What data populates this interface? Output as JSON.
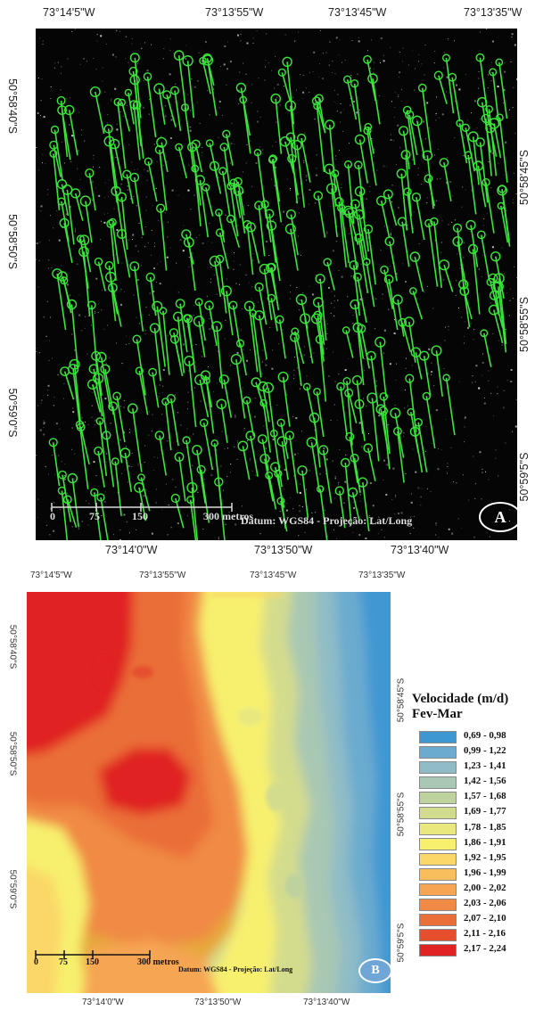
{
  "panel_a": {
    "top_labels": [
      "73°14'5\"W",
      "73°13'55\"W",
      "73°13'45\"W",
      "73°13'35\"W"
    ],
    "bottom_labels": [
      "73°14'0\"W",
      "73°13'50\"W",
      "73°13'40\"W"
    ],
    "left_labels": [
      "50°58'40\"S",
      "50°58'50\"S",
      "50°59'0\"S"
    ],
    "right_labels": [
      "50°58'45\"S",
      "50°58'55\"S",
      "50°59'5\"S"
    ],
    "scale": [
      "0",
      "75",
      "150",
      "300 metros"
    ],
    "datum": "Datum: WGS84 - Projeção: Lat/Long",
    "badge": "A",
    "vector_color": "#39e639"
  },
  "panel_b": {
    "top_labels": [
      "73°14'5\"W",
      "73°13'55\"W",
      "73°13'45\"W",
      "73°13'35\"W"
    ],
    "bottom_labels": [
      "73°14'0\"W",
      "73°13'50\"W",
      "73°13'40\"W"
    ],
    "left_labels": [
      "50°58'40\"S",
      "50°58'50\"S",
      "50°59'0\"S"
    ],
    "right_labels": [
      "50°58'45\"S",
      "50°58'55\"S",
      "50°59'5\"S"
    ],
    "scale": [
      "0",
      "75",
      "150",
      "300 metros"
    ],
    "datum": "Datum: WGS84 - Projeção: Lat/Long",
    "badge": "B"
  },
  "legend": {
    "title": "Velocidade (m/d)",
    "subtitle": "Fev-Mar",
    "items": [
      {
        "label": "0,69 - 0,98",
        "color": "#3f97d2"
      },
      {
        "label": "0,99 - 1,22",
        "color": "#6aabcf"
      },
      {
        "label": "1,23 - 1,41",
        "color": "#8fbcc6"
      },
      {
        "label": "1,42 - 1,56",
        "color": "#a8c8b3"
      },
      {
        "label": "1,57 - 1,68",
        "color": "#bed29e"
      },
      {
        "label": "1,69 - 1,77",
        "color": "#d3dc8d"
      },
      {
        "label": "1,78 - 1,85",
        "color": "#e8e87f"
      },
      {
        "label": "1,86 - 1,91",
        "color": "#f7f06e"
      },
      {
        "label": "1,92 - 1,95",
        "color": "#fad768"
      },
      {
        "label": "1,96 - 1,99",
        "color": "#f9be5c"
      },
      {
        "label": "2,00 - 2,02",
        "color": "#f6a552"
      },
      {
        "label": "2,03 - 2,06",
        "color": "#f08a44"
      },
      {
        "label": "2,07 - 2,10",
        "color": "#ea6e37"
      },
      {
        "label": "2,11 - 2,16",
        "color": "#e54f2d"
      },
      {
        "label": "2,17 - 2,24",
        "color": "#e02424"
      }
    ]
  }
}
